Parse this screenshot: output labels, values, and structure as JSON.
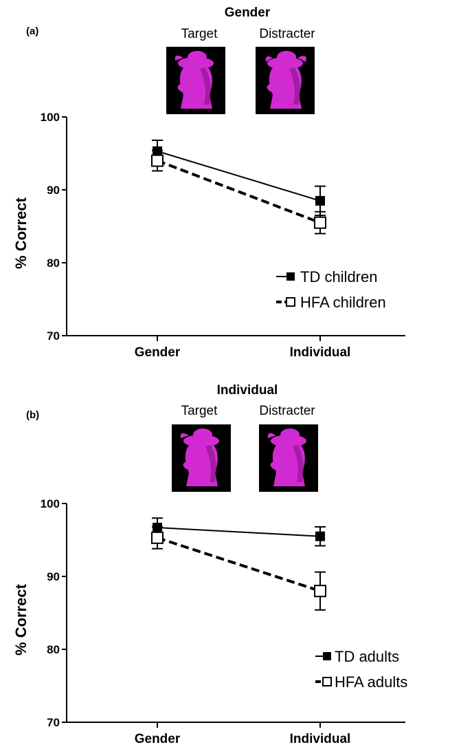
{
  "chart_data": [
    {
      "type": "line",
      "panel": "(a)",
      "condition_title": "Gender",
      "stimuli": {
        "target_label": "Target",
        "distracter_label": "Distracter"
      },
      "categories": [
        "Gender",
        "Individual"
      ],
      "ylabel": "% Correct",
      "ylim": [
        70,
        100
      ],
      "yticks": [
        70,
        80,
        90,
        100
      ],
      "series": [
        {
          "name": "TD children",
          "values": [
            95.3,
            88.5
          ],
          "errors": [
            1.5,
            2.0
          ],
          "marker": "filled-square",
          "line": "solid"
        },
        {
          "name": "HFA children",
          "values": [
            94.0,
            85.5
          ],
          "errors": [
            1.4,
            1.5
          ],
          "marker": "open-square",
          "line": "dashed"
        }
      ],
      "legend": "bottom-right"
    },
    {
      "type": "line",
      "panel": "(b)",
      "condition_title": "Individual",
      "stimuli": {
        "target_label": "Target",
        "distracter_label": "Distracter"
      },
      "categories": [
        "Gender",
        "Individual"
      ],
      "ylabel": "% Correct",
      "ylim": [
        70,
        100
      ],
      "yticks": [
        70,
        80,
        90,
        100
      ],
      "series": [
        {
          "name": "TD adults",
          "values": [
            96.7,
            95.5
          ],
          "errors": [
            1.3,
            1.3
          ],
          "marker": "filled-square",
          "line": "solid"
        },
        {
          "name": "HFA adults",
          "values": [
            95.3,
            88.0
          ],
          "errors": [
            1.5,
            2.6
          ],
          "marker": "open-square",
          "line": "dashed"
        }
      ],
      "legend": "bottom-right"
    }
  ],
  "colors": {
    "stimulus_fill": "#d22ad2",
    "stimulus_shadow": "#7a127a",
    "stimulus_bg": "#000000",
    "line": "#000000"
  }
}
